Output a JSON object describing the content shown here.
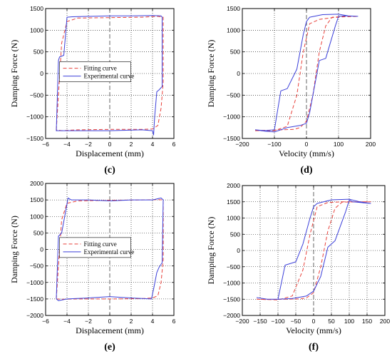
{
  "chart_data": [
    {
      "type": "line",
      "panel_label": "(c)",
      "xlabel": "Displacement (mm)",
      "ylabel": "Damping Force (N)",
      "xlim": [
        -6,
        6
      ],
      "ylim": [
        -1500,
        1500
      ],
      "xticks": [
        -6,
        -4,
        -2,
        0,
        2,
        4,
        6
      ],
      "yticks": [
        -1500,
        -1000,
        -500,
        0,
        500,
        1000,
        1500
      ],
      "grid": "dotted",
      "legend_position": "center-left",
      "series": [
        {
          "name": "Fitting curve",
          "style": "dashed",
          "color": "#e8413b",
          "x": [
            -5.0,
            -4.8,
            -4.5,
            -4.0,
            -3.0,
            0.0,
            3.0,
            4.5,
            5.0,
            5.0,
            4.8,
            4.5,
            4.0,
            3.0,
            0.0,
            -3.0,
            -4.5,
            -5.0,
            -5.0
          ],
          "y": [
            -1300,
            -500,
            700,
            1200,
            1280,
            1290,
            1300,
            1320,
            1300,
            -200,
            -800,
            -1200,
            -1280,
            -1290,
            -1290,
            -1300,
            -1320,
            -1300,
            -1300
          ]
        },
        {
          "name": "Experimental curve",
          "style": "solid",
          "color": "#3b3fd9",
          "x": [
            -5.0,
            -4.8,
            -4.7,
            -4.3,
            -4.1,
            -4.0,
            -3.5,
            -2.0,
            0.0,
            2.0,
            4.0,
            4.8,
            4.9,
            4.9,
            4.6,
            4.4,
            4.2,
            4.1,
            4.0,
            3.0,
            0.0,
            -2.0,
            -4.5,
            -5.0,
            -5.0
          ],
          "y": [
            -1330,
            300,
            380,
            420,
            1000,
            1300,
            1310,
            1320,
            1330,
            1330,
            1340,
            1330,
            1300,
            -300,
            -380,
            -420,
            -1000,
            -1420,
            -1320,
            -1300,
            -1320,
            -1320,
            -1320,
            -1320,
            -1330
          ]
        }
      ]
    },
    {
      "type": "line",
      "panel_label": "(d)",
      "xlabel": "Velocity (mm/s)",
      "ylabel": "Damping Force (N)",
      "xlim": [
        -200,
        200
      ],
      "ylim": [
        -1500,
        1500
      ],
      "xticks": [
        -200,
        -100,
        0,
        100,
        200
      ],
      "yticks": [
        -1500,
        -1000,
        -500,
        0,
        500,
        1000,
        1500
      ],
      "grid": "dotted",
      "series": [
        {
          "name": "Fitting curve",
          "style": "dashed",
          "color": "#e8413b",
          "x": [
            -160,
            -100,
            -60,
            -30,
            -10,
            10,
            40,
            80,
            120,
            160,
            120,
            80,
            60,
            40,
            20,
            0,
            -20,
            -40,
            -80,
            -120,
            -160
          ],
          "y": [
            -1320,
            -1320,
            -1220,
            -500,
            500,
            1150,
            1250,
            1290,
            1310,
            1320,
            1320,
            1300,
            1100,
            500,
            -500,
            -1100,
            -1250,
            -1290,
            -1300,
            -1310,
            -1320
          ]
        },
        {
          "name": "Experimental curve",
          "style": "solid",
          "color": "#3b3fd9",
          "x": [
            -160,
            -130,
            -100,
            -80,
            -60,
            -30,
            -10,
            0,
            10,
            50,
            100,
            130,
            160,
            120,
            100,
            90,
            60,
            40,
            30,
            10,
            0,
            -20,
            -60,
            -100,
            -130,
            -160
          ],
          "y": [
            -1300,
            -1320,
            -1300,
            -400,
            -350,
            100,
            900,
            1200,
            1300,
            1360,
            1370,
            1330,
            1320,
            1330,
            1320,
            1100,
            350,
            300,
            -100,
            -900,
            -1150,
            -1200,
            -1250,
            -1350,
            -1330,
            -1300
          ]
        }
      ]
    },
    {
      "type": "line",
      "panel_label": "(e)",
      "xlabel": "Displacement (mm)",
      "ylabel": "Damping Force (N)",
      "xlim": [
        -6,
        6
      ],
      "ylim": [
        -2000,
        2000
      ],
      "xticks": [
        -6,
        -4,
        -2,
        0,
        2,
        4,
        6
      ],
      "yticks": [
        -2000,
        -1500,
        -1000,
        -500,
        0,
        500,
        1000,
        1500,
        2000
      ],
      "grid": "dotted",
      "legend_position": "center-left",
      "series": [
        {
          "name": "Fitting curve",
          "style": "dashed",
          "color": "#e8413b",
          "x": [
            -5.0,
            -4.8,
            -4.5,
            -4.0,
            -3.0,
            0.0,
            3.0,
            4.5,
            5.0,
            5.0,
            4.8,
            4.5,
            4.0,
            3.0,
            0.0,
            -3.0,
            -4.5,
            -5.0,
            -5.0
          ],
          "y": [
            -1500,
            -500,
            900,
            1400,
            1470,
            1490,
            1500,
            1510,
            1500,
            -300,
            -1000,
            -1400,
            -1470,
            -1490,
            -1500,
            -1500,
            -1510,
            -1500,
            -1500
          ]
        },
        {
          "name": "Experimental curve",
          "style": "solid",
          "color": "#3b3fd9",
          "x": [
            -5.0,
            -4.8,
            -4.5,
            -4.1,
            -3.9,
            -3.6,
            -2.0,
            0.0,
            2.0,
            4.0,
            4.8,
            5.0,
            4.9,
            4.6,
            4.4,
            4.1,
            3.9,
            2.0,
            0.0,
            -2.0,
            -4.0,
            -4.8,
            -5.0
          ],
          "y": [
            -1500,
            400,
            500,
            1200,
            1560,
            1500,
            1500,
            1470,
            1500,
            1500,
            1560,
            1500,
            -400,
            -550,
            -700,
            -1200,
            -1500,
            -1470,
            -1430,
            -1470,
            -1500,
            -1550,
            -1500
          ]
        }
      ]
    },
    {
      "type": "line",
      "panel_label": "(f)",
      "xlabel": "Velocity (mm/s)",
      "ylabel": "Damping Force (N)",
      "xlim": [
        -200,
        200
      ],
      "ylim": [
        -2000,
        2000
      ],
      "xticks": [
        -200,
        -150,
        -100,
        -50,
        0,
        50,
        100,
        150,
        200
      ],
      "yticks": [
        -2000,
        -1500,
        -1000,
        -500,
        0,
        500,
        1000,
        1500,
        2000
      ],
      "grid": "dotted",
      "series": [
        {
          "name": "Fitting curve",
          "style": "dashed",
          "color": "#e8413b",
          "x": [
            -160,
            -100,
            -60,
            -30,
            -10,
            10,
            40,
            80,
            120,
            160,
            120,
            80,
            60,
            40,
            20,
            0,
            -20,
            -40,
            -80,
            -120,
            -160
          ],
          "y": [
            -1500,
            -1520,
            -1400,
            -600,
            500,
            1350,
            1480,
            1500,
            1500,
            1500,
            1500,
            1490,
            1300,
            600,
            -500,
            -1300,
            -1460,
            -1490,
            -1500,
            -1510,
            -1500
          ]
        },
        {
          "name": "Experimental curve",
          "style": "solid",
          "color": "#3b3fd9",
          "x": [
            -160,
            -130,
            -100,
            -80,
            -50,
            -30,
            -10,
            0,
            10,
            50,
            100,
            130,
            160,
            110,
            100,
            90,
            60,
            40,
            20,
            0,
            -20,
            -60,
            -100,
            -130,
            -160
          ],
          "y": [
            -1450,
            -1500,
            -1500,
            -450,
            -350,
            200,
            1000,
            1350,
            1450,
            1560,
            1580,
            1500,
            1450,
            1500,
            1550,
            1200,
            300,
            100,
            -800,
            -1250,
            -1400,
            -1480,
            -1500,
            -1500,
            -1450
          ]
        }
      ]
    }
  ]
}
